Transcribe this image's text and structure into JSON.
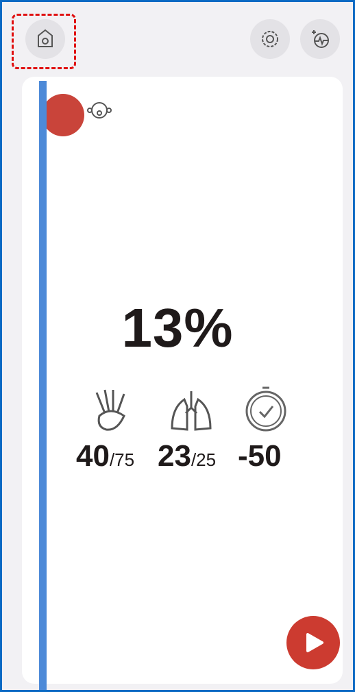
{
  "progress": {
    "percent": "13%"
  },
  "stats": [
    {
      "value": "40",
      "target": "/75"
    },
    {
      "value": "23",
      "target": "/25"
    },
    {
      "value": "-50"
    }
  ]
}
